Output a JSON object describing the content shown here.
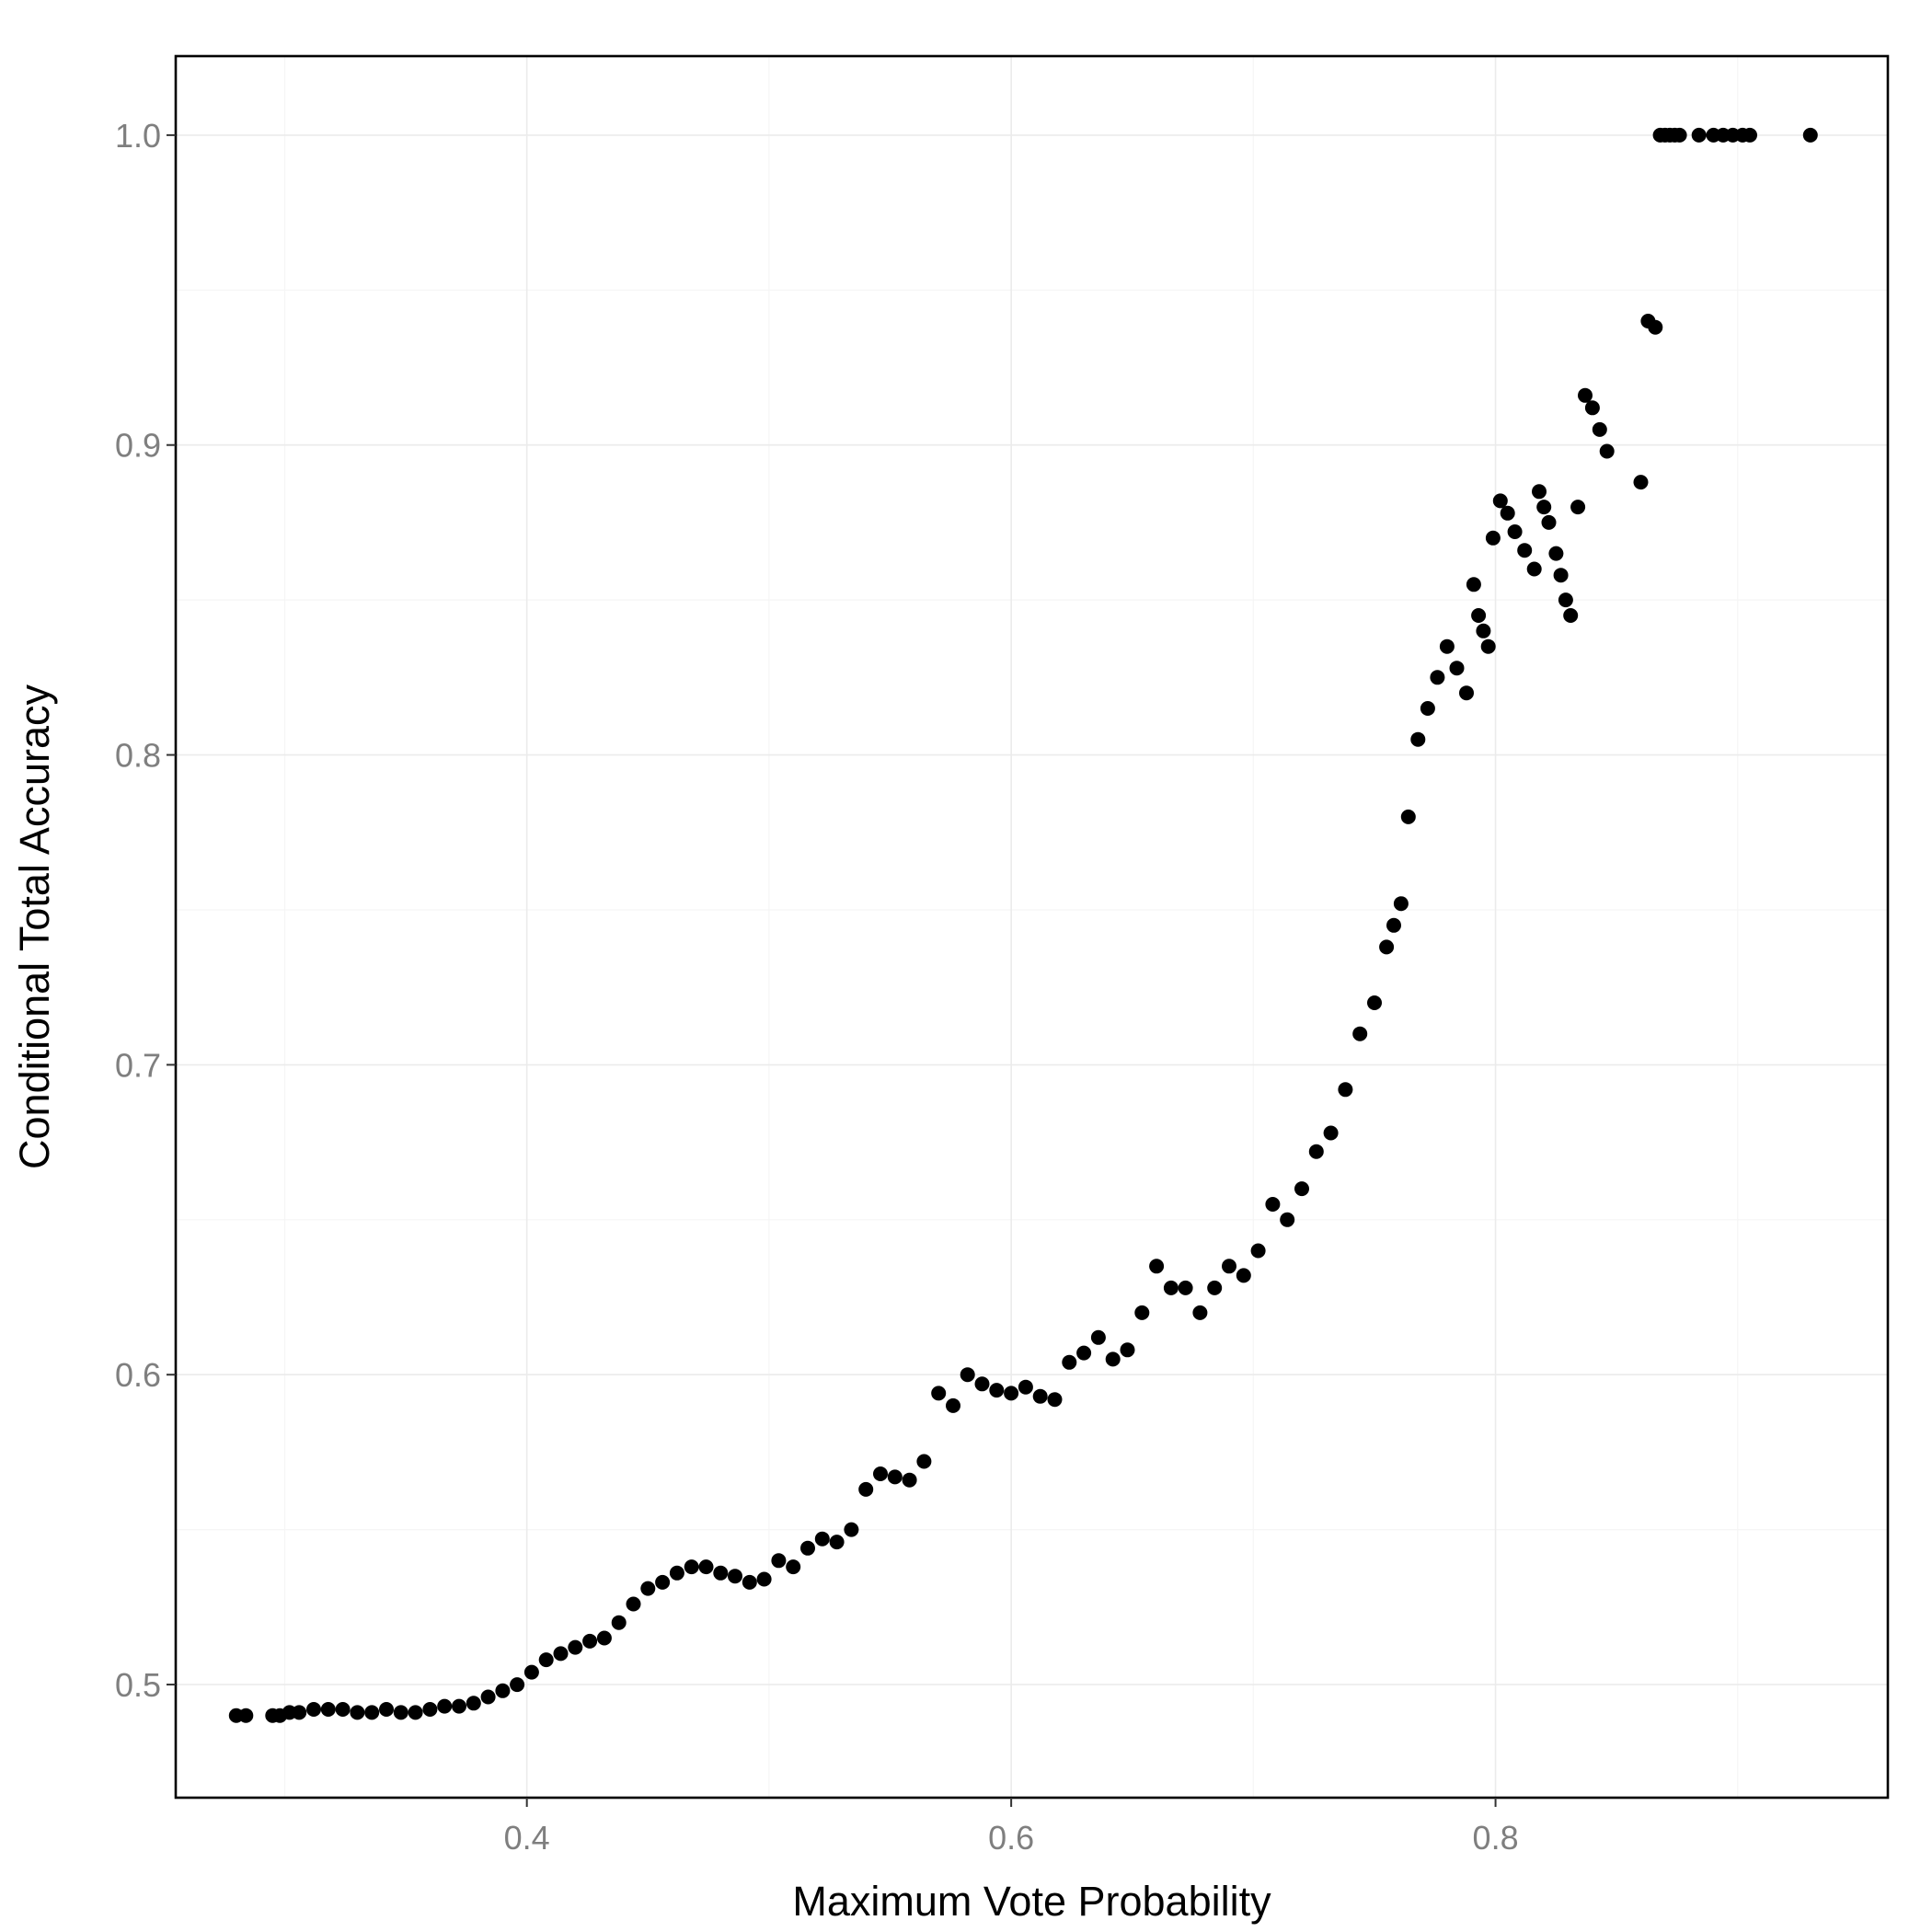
{
  "chart_data": {
    "type": "scatter",
    "title": "",
    "xlabel": "Maximum Vote Probability",
    "ylabel": "Conditional Total Accuracy",
    "xlim": [
      0.255,
      0.962
    ],
    "ylim": [
      0.4635,
      1.0255
    ],
    "x_ticks": [
      0.4,
      0.6,
      0.8
    ],
    "x_tick_labels": [
      "0.4",
      "0.6",
      "0.8"
    ],
    "y_ticks": [
      0.5,
      0.6,
      0.7,
      0.8,
      0.9,
      1.0
    ],
    "y_tick_labels": [
      "0.5",
      "0.6",
      "0.7",
      "0.8",
      "0.9",
      "1.0"
    ],
    "grid": true,
    "legend": "none",
    "point_color": "#000000",
    "x": [
      0.28,
      0.284,
      0.295,
      0.298,
      0.302,
      0.306,
      0.312,
      0.318,
      0.324,
      0.33,
      0.336,
      0.342,
      0.348,
      0.354,
      0.36,
      0.366,
      0.372,
      0.378,
      0.384,
      0.39,
      0.396,
      0.402,
      0.408,
      0.414,
      0.42,
      0.426,
      0.432,
      0.438,
      0.444,
      0.45,
      0.456,
      0.462,
      0.468,
      0.474,
      0.48,
      0.486,
      0.492,
      0.498,
      0.504,
      0.51,
      0.516,
      0.522,
      0.528,
      0.534,
      0.54,
      0.546,
      0.552,
      0.558,
      0.564,
      0.57,
      0.576,
      0.582,
      0.588,
      0.594,
      0.6,
      0.606,
      0.612,
      0.618,
      0.624,
      0.63,
      0.636,
      0.642,
      0.648,
      0.654,
      0.66,
      0.666,
      0.672,
      0.678,
      0.684,
      0.69,
      0.696,
      0.702,
      0.708,
      0.714,
      0.72,
      0.726,
      0.732,
      0.738,
      0.744,
      0.75,
      0.755,
      0.758,
      0.761,
      0.764,
      0.768,
      0.772,
      0.776,
      0.78,
      0.784,
      0.788,
      0.791,
      0.793,
      0.795,
      0.797,
      0.799,
      0.802,
      0.805,
      0.808,
      0.812,
      0.816,
      0.818,
      0.82,
      0.822,
      0.825,
      0.827,
      0.829,
      0.831,
      0.834,
      0.837,
      0.84,
      0.843,
      0.846,
      0.86,
      0.863,
      0.866,
      0.868,
      0.87,
      0.872,
      0.874,
      0.876,
      0.884,
      0.89,
      0.894,
      0.898,
      0.902,
      0.905,
      0.93
    ],
    "y": [
      0.49,
      0.49,
      0.49,
      0.49,
      0.491,
      0.491,
      0.492,
      0.492,
      0.492,
      0.491,
      0.491,
      0.492,
      0.491,
      0.491,
      0.492,
      0.493,
      0.493,
      0.494,
      0.496,
      0.498,
      0.5,
      0.504,
      0.508,
      0.51,
      0.512,
      0.514,
      0.515,
      0.52,
      0.526,
      0.531,
      0.533,
      0.536,
      0.538,
      0.538,
      0.536,
      0.535,
      0.533,
      0.534,
      0.54,
      0.538,
      0.544,
      0.547,
      0.546,
      0.55,
      0.563,
      0.568,
      0.567,
      0.566,
      0.572,
      0.594,
      0.59,
      0.6,
      0.597,
      0.595,
      0.594,
      0.596,
      0.593,
      0.592,
      0.604,
      0.607,
      0.612,
      0.605,
      0.608,
      0.62,
      0.635,
      0.628,
      0.628,
      0.62,
      0.628,
      0.635,
      0.632,
      0.64,
      0.655,
      0.65,
      0.66,
      0.672,
      0.678,
      0.692,
      0.71,
      0.72,
      0.738,
      0.745,
      0.752,
      0.78,
      0.805,
      0.815,
      0.825,
      0.835,
      0.828,
      0.82,
      0.855,
      0.845,
      0.84,
      0.835,
      0.87,
      0.882,
      0.878,
      0.872,
      0.866,
      0.86,
      0.885,
      0.88,
      0.875,
      0.865,
      0.858,
      0.85,
      0.845,
      0.88,
      0.916,
      0.912,
      0.905,
      0.898,
      0.888,
      0.94,
      0.938,
      1.0,
      1.0,
      1.0,
      1.0,
      1.0,
      1.0,
      1.0,
      1.0,
      1.0,
      1.0,
      1.0,
      1.0
    ]
  }
}
